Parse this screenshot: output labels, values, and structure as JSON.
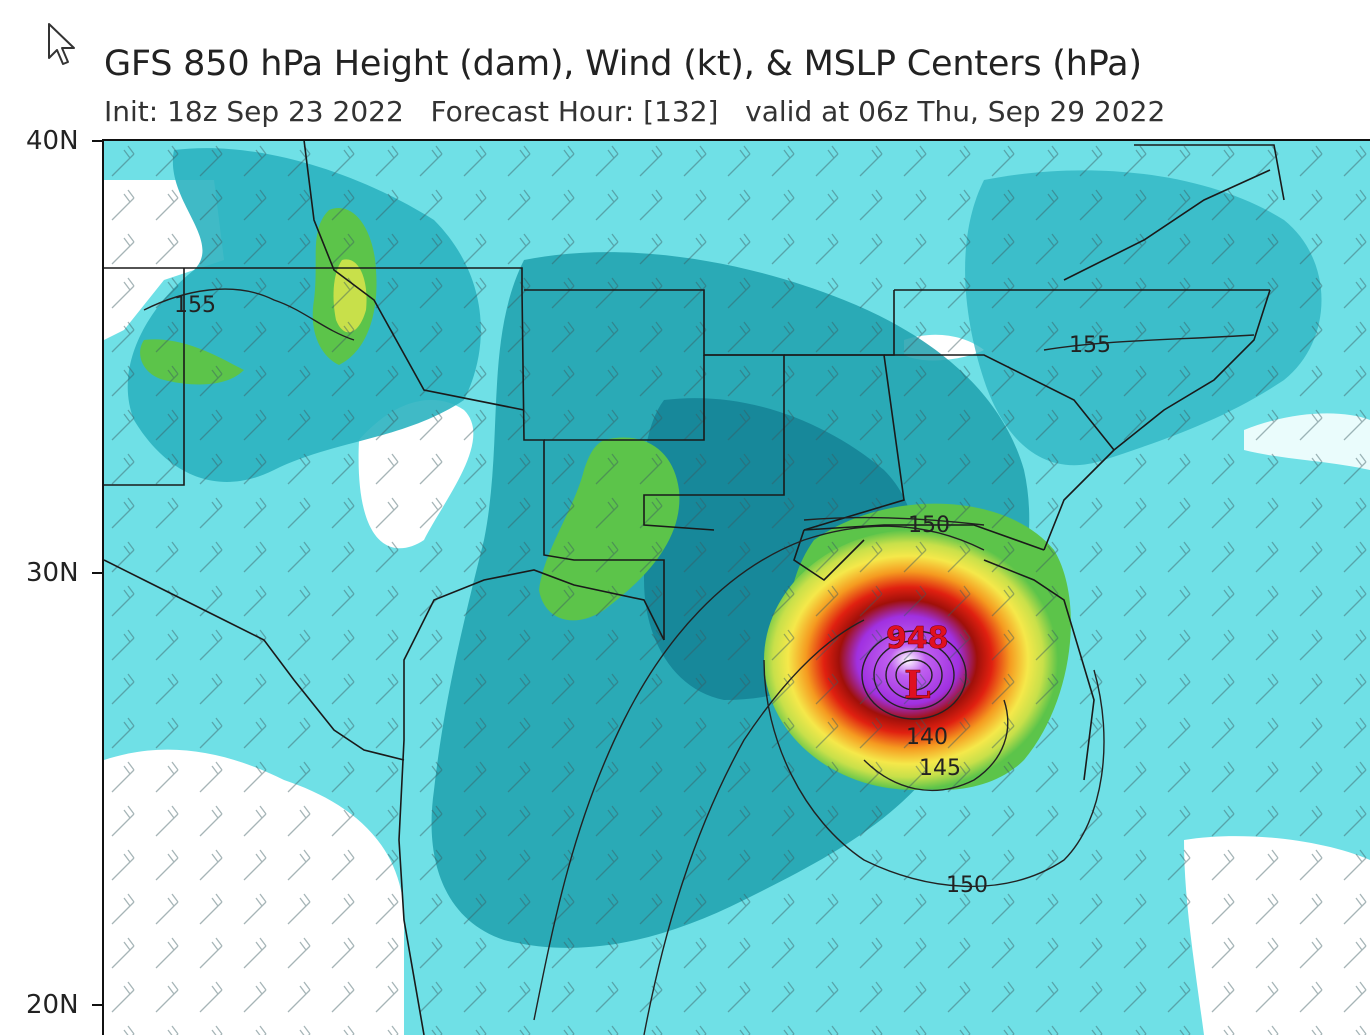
{
  "header": {
    "title": "GFS 850 hPa Height (dam), Wind (kt), & MSLP Centers (hPa)",
    "init": "Init: 18z Sep 23 2022",
    "forecast_hour": "Forecast Hour: [132]",
    "valid": "valid at 06z Thu, Sep 29 2022"
  },
  "axis": {
    "lat_labels": [
      "40N",
      "30N",
      "20N"
    ]
  },
  "map": {
    "contour_labels": [
      "155",
      "155",
      "150",
      "140",
      "145",
      "150"
    ],
    "low_center": {
      "pressure": "948",
      "symbol": "L"
    },
    "colors": {
      "light_cyan": "#8ef0f0",
      "cyan": "#3cc9d4",
      "teal": "#1ea0ad",
      "dark_teal": "#137f93",
      "green": "#5cc44a",
      "yellow_green": "#c8e04a",
      "yellow": "#f5e84a",
      "orange": "#f59a20",
      "red": "#e02010",
      "dark_red": "#a0100a",
      "purple": "#a030e0",
      "violet": "#c060f0",
      "low_label": "#e01020"
    }
  }
}
